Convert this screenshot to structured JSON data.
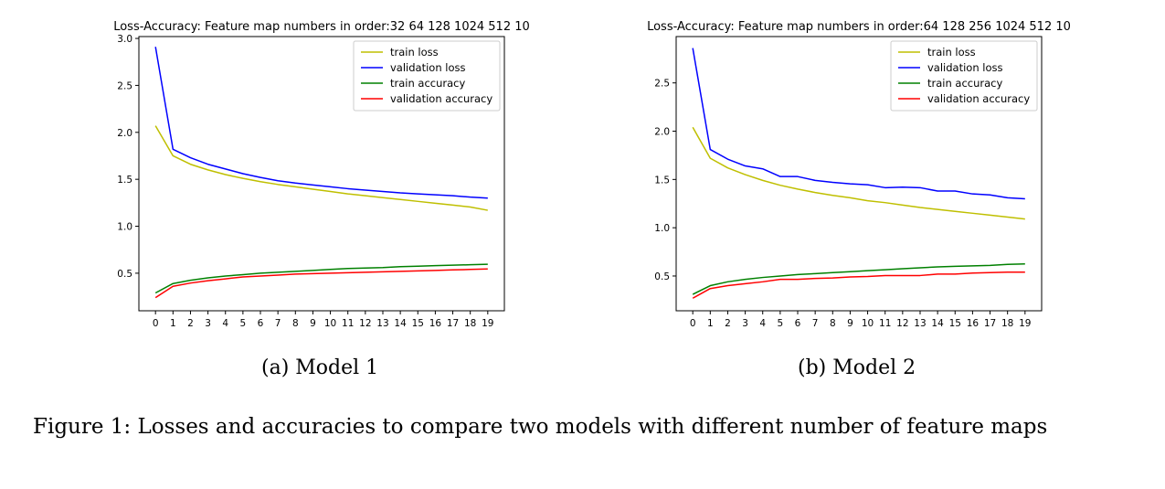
{
  "chart_data": [
    {
      "type": "line",
      "title": "Loss-Accuracy: Feature map numbers in order:32 64 128 1024 512 10",
      "xlabel": "",
      "ylabel": "",
      "x": [
        0,
        1,
        2,
        3,
        4,
        5,
        6,
        7,
        8,
        9,
        10,
        11,
        12,
        13,
        14,
        15,
        16,
        17,
        18,
        19
      ],
      "xlim": [
        -0.95,
        19.95
      ],
      "ylim": [
        0.1,
        3.02
      ],
      "yticks": [
        0.5,
        1.0,
        1.5,
        2.0,
        2.5,
        3.0
      ],
      "ytick_labels": [
        "0.5",
        "1.0",
        "1.5",
        "2.0",
        "2.5",
        "3.0"
      ],
      "legend_position": "top-right",
      "series": [
        {
          "name": "train loss",
          "color": "#bfbf00",
          "values": [
            2.07,
            1.75,
            1.66,
            1.6,
            1.55,
            1.51,
            1.475,
            1.445,
            1.42,
            1.395,
            1.37,
            1.345,
            1.325,
            1.305,
            1.285,
            1.265,
            1.245,
            1.225,
            1.205,
            1.17
          ]
        },
        {
          "name": "validation loss",
          "color": "#0000ff",
          "values": [
            2.91,
            1.82,
            1.73,
            1.66,
            1.61,
            1.56,
            1.52,
            1.485,
            1.46,
            1.44,
            1.42,
            1.4,
            1.385,
            1.37,
            1.355,
            1.345,
            1.335,
            1.325,
            1.31,
            1.3
          ]
        },
        {
          "name": "train accuracy",
          "color": "#008000",
          "values": [
            0.29,
            0.39,
            0.425,
            0.45,
            0.47,
            0.485,
            0.5,
            0.51,
            0.52,
            0.53,
            0.54,
            0.55,
            0.555,
            0.56,
            0.57,
            0.575,
            0.58,
            0.585,
            0.59,
            0.595
          ]
        },
        {
          "name": "validation accuracy",
          "color": "#ff0000",
          "values": [
            0.24,
            0.36,
            0.395,
            0.42,
            0.44,
            0.46,
            0.47,
            0.48,
            0.49,
            0.495,
            0.5,
            0.505,
            0.51,
            0.515,
            0.52,
            0.525,
            0.53,
            0.535,
            0.54,
            0.545
          ]
        }
      ]
    },
    {
      "type": "line",
      "title": "Loss-Accuracy: Feature map numbers in order:64 128 256 1024 512 10",
      "xlabel": "",
      "ylabel": "",
      "x": [
        0,
        1,
        2,
        3,
        4,
        5,
        6,
        7,
        8,
        9,
        10,
        11,
        12,
        13,
        14,
        15,
        16,
        17,
        18,
        19
      ],
      "xlim": [
        -0.95,
        19.95
      ],
      "ylim": [
        0.14,
        2.98
      ],
      "yticks": [
        0.5,
        1.0,
        1.5,
        2.0,
        2.5
      ],
      "ytick_labels": [
        "0.5",
        "1.0",
        "1.5",
        "2.0",
        "2.5"
      ],
      "legend_position": "top-right",
      "series": [
        {
          "name": "train loss",
          "color": "#bfbf00",
          "values": [
            2.04,
            1.72,
            1.62,
            1.55,
            1.49,
            1.44,
            1.4,
            1.365,
            1.335,
            1.31,
            1.28,
            1.26,
            1.235,
            1.21,
            1.19,
            1.17,
            1.15,
            1.13,
            1.11,
            1.09
          ]
        },
        {
          "name": "validation loss",
          "color": "#0000ff",
          "values": [
            2.86,
            1.81,
            1.71,
            1.64,
            1.61,
            1.53,
            1.53,
            1.49,
            1.47,
            1.455,
            1.445,
            1.415,
            1.42,
            1.415,
            1.38,
            1.38,
            1.35,
            1.34,
            1.31,
            1.3
          ]
        },
        {
          "name": "train accuracy",
          "color": "#008000",
          "values": [
            0.31,
            0.4,
            0.44,
            0.465,
            0.485,
            0.5,
            0.515,
            0.525,
            0.535,
            0.545,
            0.555,
            0.565,
            0.575,
            0.585,
            0.595,
            0.6,
            0.605,
            0.61,
            0.62,
            0.625
          ]
        },
        {
          "name": "validation accuracy",
          "color": "#ff0000",
          "values": [
            0.27,
            0.37,
            0.4,
            0.42,
            0.44,
            0.465,
            0.465,
            0.475,
            0.48,
            0.49,
            0.495,
            0.505,
            0.505,
            0.505,
            0.52,
            0.52,
            0.53,
            0.535,
            0.54,
            0.54
          ]
        }
      ]
    }
  ],
  "subcaptions": {
    "a": "(a) Model 1",
    "b": "(b) Model 2"
  },
  "caption": "Figure 1: Losses and accuracies to compare two models with different number of feature maps"
}
